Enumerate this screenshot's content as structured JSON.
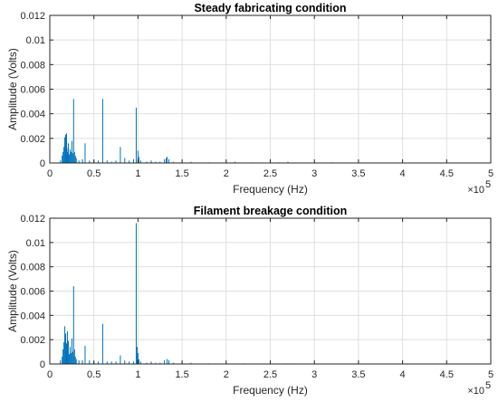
{
  "chart_data": [
    {
      "type": "line",
      "title": "Steady fabricating condition",
      "xlabel": "Frequency (Hz)",
      "ylabel": "Amplitude (Volts)",
      "x_exponent_label": "×10",
      "x_exponent": "5",
      "xlim": [
        0,
        500000
      ],
      "ylim": [
        0,
        0.012
      ],
      "grid": true,
      "series_color": "#0072BD",
      "x_ticks": [
        "0",
        "0.5",
        "1",
        "1.5",
        "2",
        "2.5",
        "3",
        "3.5",
        "4",
        "4.5",
        "5"
      ],
      "y_ticks": [
        "0",
        "0.002",
        "0.004",
        "0.006",
        "0.008",
        "0.01",
        "0.012"
      ],
      "x": [
        12000,
        14000,
        15000,
        16000,
        17000,
        18000,
        18500,
        19000,
        19500,
        20000,
        21000,
        22000,
        23000,
        24000,
        25000,
        26000,
        27000,
        28000,
        29000,
        30000,
        33000,
        37000,
        40000,
        45000,
        50000,
        55000,
        60000,
        65000,
        70000,
        75000,
        80000,
        85000,
        90000,
        95000,
        98000,
        100000,
        101000,
        103000,
        110000,
        115000,
        120000,
        125000,
        130000,
        132000,
        133000,
        135000,
        140000,
        150000,
        160000,
        180000,
        200000,
        210000,
        230000,
        250000,
        260000,
        270000,
        300000,
        320000,
        340000,
        360000,
        400000,
        420000,
        440000,
        460000,
        480000
      ],
      "values": [
        0.0002,
        0.0006,
        0.0009,
        0.0013,
        0.0021,
        0.0023,
        0.0015,
        0.0024,
        0.0012,
        0.0009,
        0.0016,
        0.0007,
        0.0011,
        0.0009,
        0.0018,
        0.0008,
        0.0052,
        0.0009,
        0.0006,
        0.0004,
        0.0002,
        0.0003,
        0.0016,
        0.0002,
        0.0002,
        0.0002,
        0.0052,
        0.0002,
        0.0001,
        0.0002,
        0.0013,
        0.0004,
        0.0002,
        0.0003,
        0.0045,
        0.001,
        0.0005,
        0.0002,
        0.0001,
        0.0002,
        0.0001,
        0.0001,
        0.0003,
        0.0004,
        0.0005,
        0.0003,
        0.0001,
        0.0001,
        0.0001,
        5e-05,
        5e-05,
        0.0001,
        5e-05,
        5e-05,
        5e-05,
        0.0001,
        3e-05,
        5e-05,
        3e-05,
        3e-05,
        3e-05,
        3e-05,
        3e-05,
        3e-05,
        3e-05
      ]
    },
    {
      "type": "line",
      "title": "Filament breakage condition",
      "xlabel": "Frequency (Hz)",
      "ylabel": "Amplitude (Volts)",
      "x_exponent_label": "×10",
      "x_exponent": "5",
      "xlim": [
        0,
        500000
      ],
      "ylim": [
        0,
        0.012
      ],
      "grid": true,
      "series_color": "#0072BD",
      "x_ticks": [
        "0",
        "0.5",
        "1",
        "1.5",
        "2",
        "2.5",
        "3",
        "3.5",
        "4",
        "4.5",
        "5"
      ],
      "y_ticks": [
        "0",
        "0.002",
        "0.004",
        "0.006",
        "0.008",
        "0.01",
        "0.012"
      ],
      "x": [
        12000,
        14000,
        15000,
        16000,
        17000,
        18000,
        19000,
        20000,
        21000,
        22000,
        23000,
        24000,
        25000,
        26000,
        27000,
        28000,
        29000,
        30000,
        33000,
        37000,
        40000,
        45000,
        50000,
        55000,
        60000,
        65000,
        70000,
        75000,
        80000,
        85000,
        90000,
        95000,
        98000,
        99000,
        100000,
        101000,
        103000,
        110000,
        115000,
        120000,
        125000,
        130000,
        133000,
        135000,
        140000,
        150000,
        160000,
        180000,
        200000,
        220000,
        250000,
        270000,
        300000,
        320000,
        340000,
        360000,
        400000,
        420000,
        440000,
        460000,
        480000
      ],
      "values": [
        0.0003,
        0.0006,
        0.0012,
        0.0018,
        0.0031,
        0.0025,
        0.0017,
        0.0027,
        0.0019,
        0.0008,
        0.0014,
        0.0009,
        0.0021,
        0.001,
        0.0064,
        0.0012,
        0.0006,
        0.0004,
        0.0003,
        0.0003,
        0.0015,
        0.0003,
        0.0002,
        0.0002,
        0.0033,
        0.0002,
        0.0002,
        0.0002,
        0.0007,
        0.0003,
        0.0002,
        0.0002,
        0.0116,
        0.0014,
        0.0009,
        0.0004,
        0.0002,
        0.0001,
        0.0002,
        0.0001,
        0.0001,
        0.0003,
        0.0004,
        0.0003,
        0.0001,
        0.0001,
        0.0001,
        5e-05,
        5e-05,
        5e-05,
        5e-05,
        5e-05,
        3e-05,
        3e-05,
        3e-05,
        3e-05,
        3e-05,
        3e-05,
        3e-05,
        3e-05,
        3e-05
      ]
    }
  ]
}
